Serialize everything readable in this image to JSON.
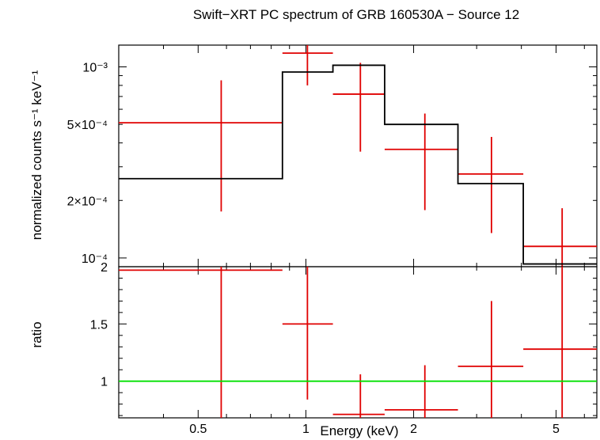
{
  "chart_data": {
    "type": "line",
    "title": "Swift−XRT PC spectrum of GRB 160530A − Source 12",
    "xlabel": "Energy (keV)",
    "xscale": "log",
    "xlim": [
      0.3,
      6.5
    ],
    "x_ticks": [
      0.5,
      1,
      2,
      5
    ],
    "x_ticklabels": [
      "0.5",
      "1",
      "2",
      "5"
    ],
    "panels": [
      {
        "name": "spectrum",
        "ylabel": "normalized counts s⁻¹ keV⁻¹",
        "yscale": "log",
        "ylim": [
          9e-05,
          0.0013
        ],
        "y_ticklabels": [
          {
            "value": 0.0001,
            "label": "10⁻⁴"
          },
          {
            "value": 0.0002,
            "label": "2×10⁻⁴"
          },
          {
            "value": 0.0005,
            "label": "5×10⁻⁴"
          },
          {
            "value": 0.001,
            "label": "10⁻³"
          }
        ],
        "series": [
          {
            "style": "data-crosses",
            "color": "#e00000",
            "points": [
              {
                "x": 0.58,
                "xlo": 0.3,
                "xhi": 0.86,
                "y": 0.00051,
                "ylo": 0.000175,
                "yhi": 0.00085
              },
              {
                "x": 1.01,
                "xlo": 0.86,
                "xhi": 1.19,
                "y": 0.00118,
                "ylo": 0.0008,
                "yhi": 0.0013
              },
              {
                "x": 1.42,
                "xlo": 1.19,
                "xhi": 1.66,
                "y": 0.00072,
                "ylo": 0.00036,
                "yhi": 0.00105
              },
              {
                "x": 2.15,
                "xlo": 1.66,
                "xhi": 2.66,
                "y": 0.00037,
                "ylo": 0.000178,
                "yhi": 0.00057
              },
              {
                "x": 3.3,
                "xlo": 2.66,
                "xhi": 4.05,
                "y": 0.000275,
                "ylo": 0.000135,
                "yhi": 0.00043
              },
              {
                "x": 5.2,
                "xlo": 4.05,
                "xhi": 6.5,
                "y": 0.000115,
                "ylo": 9e-05,
                "yhi": 0.000182
              }
            ]
          },
          {
            "style": "model-histogram",
            "color": "#000000",
            "edges": [
              0.3,
              0.86,
              1.19,
              1.66,
              2.66,
              4.05,
              6.5
            ],
            "values": [
              0.00026,
              0.00094,
              0.00102,
              0.0005,
              0.000245,
              9.3e-05
            ]
          }
        ]
      },
      {
        "name": "ratio",
        "ylabel": "ratio",
        "yscale": "linear",
        "ylim": [
          0.68,
          2.0
        ],
        "y_ticklabels": [
          {
            "value": 1,
            "label": "1"
          },
          {
            "value": 1.5,
            "label": "1.5"
          },
          {
            "value": 2,
            "label": "2"
          }
        ],
        "series": [
          {
            "style": "data-crosses",
            "color": "#e00000",
            "points": [
              {
                "x": 0.58,
                "xlo": 0.3,
                "xhi": 0.86,
                "y": 1.97,
                "ylo": 0.68,
                "yhi": 2.0
              },
              {
                "x": 1.01,
                "xlo": 0.86,
                "xhi": 1.19,
                "y": 1.5,
                "ylo": 0.84,
                "yhi": 2.0
              },
              {
                "x": 1.42,
                "xlo": 1.19,
                "xhi": 1.66,
                "y": 0.71,
                "ylo": 0.68,
                "yhi": 1.06
              },
              {
                "x": 2.15,
                "xlo": 1.66,
                "xhi": 2.66,
                "y": 0.75,
                "ylo": 0.68,
                "yhi": 1.14
              },
              {
                "x": 3.3,
                "xlo": 2.66,
                "xhi": 4.05,
                "y": 1.13,
                "ylo": 0.68,
                "yhi": 1.7
              },
              {
                "x": 5.2,
                "xlo": 4.05,
                "xhi": 6.5,
                "y": 1.28,
                "ylo": 0.68,
                "yhi": 2.0
              }
            ]
          },
          {
            "style": "reference-line",
            "color": "#00e000",
            "y": 1
          }
        ]
      }
    ]
  }
}
